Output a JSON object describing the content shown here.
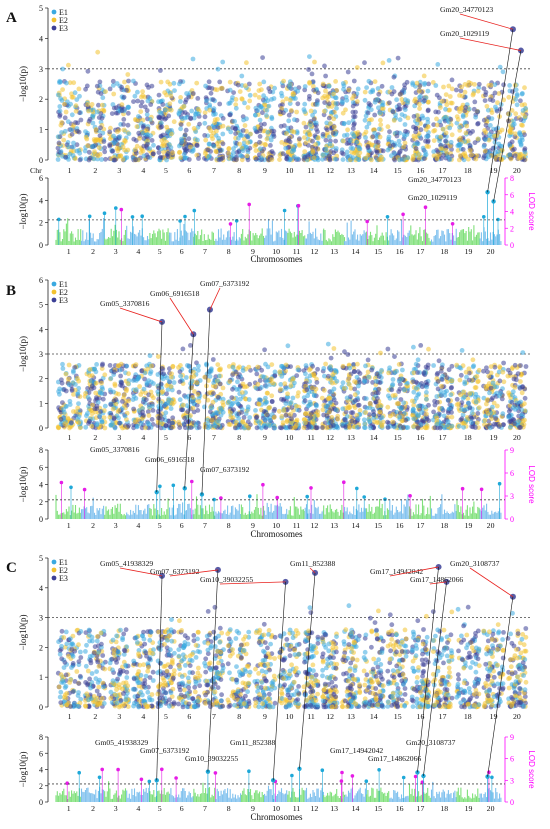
{
  "colors": {
    "E1": "#3aa9e0",
    "E2": "#f2c230",
    "E3": "#3b3f96",
    "gwas_threshold": "#444444",
    "lod_blue": "#7ec0ee",
    "lod_green": "#7fe07a",
    "lod_peak_blue": "#1ea8d8",
    "lod_peak_magenta": "#e61ce6",
    "lod_axis": "#ff00ff",
    "leader_gwas": "#e8221f",
    "leader_lod": "#111111"
  },
  "chromosome_ticks": [
    "1",
    "2",
    "3",
    "4",
    "5",
    "6",
    "7",
    "8",
    "9",
    "10",
    "11",
    "12",
    "13",
    "14",
    "15",
    "16",
    "17",
    "18",
    "19",
    "20"
  ],
  "chart_data": [
    {
      "panel": "A",
      "type": "scatter",
      "legend": {
        "entries": [
          "E1",
          "E2",
          "E3"
        ],
        "position": "top-left"
      },
      "gwas": {
        "ylabel": "−log10(p)",
        "x_tick_prefix": "Chr",
        "ylim": [
          0,
          5
        ],
        "yticks": [
          0,
          1,
          2,
          3,
          4,
          5
        ],
        "threshold": 3,
        "top_signals": [
          {
            "label": "Gm20_34770123",
            "chr": 20,
            "value": 4.3
          },
          {
            "label": "Gm20_1029119",
            "chr": 20,
            "value": 3.6
          }
        ]
      },
      "lod": {
        "ylabel": "−log10(p)",
        "right_axis_label": "LOD score",
        "xlabel": "Chromosomes",
        "yticks_left": [
          0,
          2,
          4,
          6
        ],
        "yticks_right": [
          0,
          2,
          4,
          6,
          8
        ],
        "threshold": 3,
        "peaks": [
          {
            "label": "Gm20_34770123",
            "chr": 20,
            "value": 6.3
          },
          {
            "label": "Gm20_1029119",
            "chr": 20,
            "value": 5.2
          }
        ]
      }
    },
    {
      "panel": "B",
      "type": "scatter",
      "legend": {
        "entries": [
          "E1",
          "E2",
          "E3"
        ],
        "position": "top-left"
      },
      "gwas": {
        "ylabel": "−log10(p)",
        "ylim": [
          0,
          6
        ],
        "yticks": [
          0,
          1,
          2,
          3,
          4,
          5,
          6
        ],
        "threshold": 3,
        "top_signals": [
          {
            "label": "Gm05_3370816",
            "chr": 5,
            "value": 4.3
          },
          {
            "label": "Gm06_6916518",
            "chr": 6,
            "value": 3.8
          },
          {
            "label": "Gm07_6373192",
            "chr": 7,
            "value": 4.8
          }
        ]
      },
      "lod": {
        "ylabel": "−log10(p)",
        "right_axis_label": "LOD score",
        "xlabel": "Chromosomes",
        "yticks_left": [
          0,
          2,
          4,
          6,
          8
        ],
        "yticks_right": [
          0,
          3,
          6,
          9
        ],
        "threshold": 2.5,
        "peaks": [
          {
            "label": "Gm05_3370816",
            "chr": 5,
            "value": 3.5
          },
          {
            "label": "Gm06_6916518",
            "chr": 6,
            "value": 4.0
          },
          {
            "label": "Gm07_6373192",
            "chr": 7,
            "value": 3.2
          }
        ]
      }
    },
    {
      "panel": "C",
      "type": "scatter",
      "legend": {
        "entries": [
          "E1",
          "E2",
          "E3"
        ],
        "position": "top-left"
      },
      "gwas": {
        "ylabel": "−log10(p)",
        "ylim": [
          0,
          5
        ],
        "yticks": [
          0,
          1,
          2,
          3,
          4,
          5
        ],
        "threshold": 3,
        "top_signals": [
          {
            "label": "Gm05_41938329",
            "chr": 5,
            "value": 4.4
          },
          {
            "label": "Gm07_6373192",
            "chr": 7,
            "value": 4.6
          },
          {
            "label": "Gm10_39032255",
            "chr": 10,
            "value": 4.2
          },
          {
            "label": "Gm11_852388",
            "chr": 11,
            "value": 4.5
          },
          {
            "label": "Gm17_14942042",
            "chr": 17,
            "value": 4.7
          },
          {
            "label": "Gm17_14862066",
            "chr": 17,
            "value": 4.2
          },
          {
            "label": "Gm20_3108737",
            "chr": 20,
            "value": 3.7
          }
        ]
      },
      "lod": {
        "ylabel": "−log10(p)",
        "right_axis_label": "LOD score",
        "xlabel": "Chromosomes",
        "yticks_left": [
          0,
          2,
          4,
          6,
          8
        ],
        "yticks_right": [
          0,
          3,
          6,
          9
        ],
        "threshold": 2.5,
        "peaks": [
          {
            "label": "Gm05_41938329",
            "chr": 5,
            "value": 3.0
          },
          {
            "label": "Gm07_6373192",
            "chr": 7,
            "value": 4.2
          },
          {
            "label": "Gm10_39032255",
            "chr": 10,
            "value": 3.0
          },
          {
            "label": "Gm11_852388",
            "chr": 11,
            "value": 4.6
          },
          {
            "label": "Gm17_14942042",
            "chr": 17,
            "value": 4.1
          },
          {
            "label": "Gm17_14862066",
            "chr": 17,
            "value": 3.6
          },
          {
            "label": "Gm20_3108737",
            "chr": 20,
            "value": 3.5
          }
        ]
      }
    }
  ]
}
